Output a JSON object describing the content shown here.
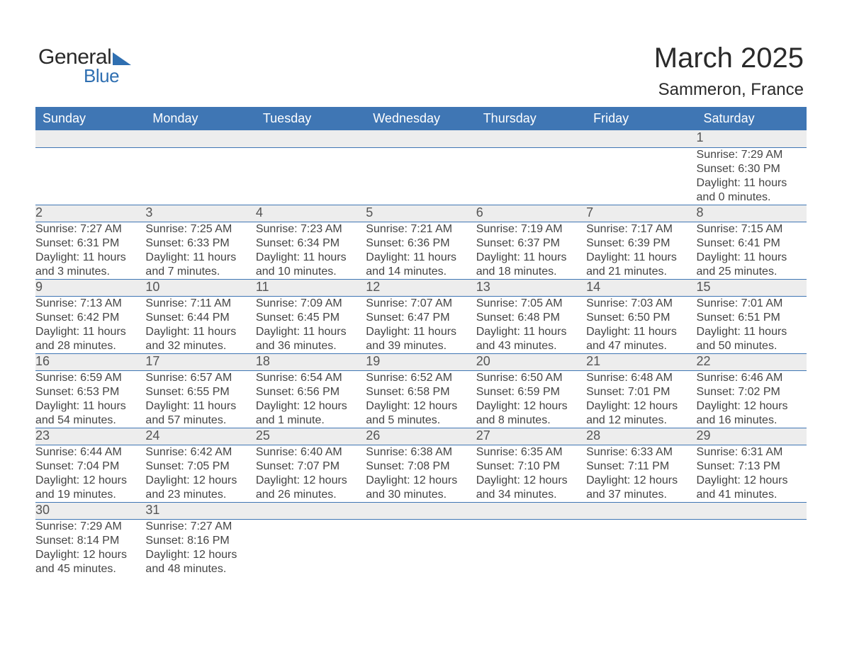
{
  "logo": {
    "word1": "General",
    "word2": "Blue",
    "accent_color": "#2f6fb1"
  },
  "title": {
    "month": "March 2025",
    "location": "Sammeron, France"
  },
  "calendar": {
    "header_bg": "#3f76b4",
    "header_fg": "#ffffff",
    "daynum_bg": "#ededed",
    "rule_color": "#3f76b4",
    "text_color": "#444444",
    "columns": [
      "Sunday",
      "Monday",
      "Tuesday",
      "Wednesday",
      "Thursday",
      "Friday",
      "Saturday"
    ],
    "weeks": [
      [
        null,
        null,
        null,
        null,
        null,
        null,
        {
          "n": "1",
          "sunrise": "7:29 AM",
          "sunset": "6:30 PM",
          "daylight": "11 hours and 0 minutes."
        }
      ],
      [
        {
          "n": "2",
          "sunrise": "7:27 AM",
          "sunset": "6:31 PM",
          "daylight": "11 hours and 3 minutes."
        },
        {
          "n": "3",
          "sunrise": "7:25 AM",
          "sunset": "6:33 PM",
          "daylight": "11 hours and 7 minutes."
        },
        {
          "n": "4",
          "sunrise": "7:23 AM",
          "sunset": "6:34 PM",
          "daylight": "11 hours and 10 minutes."
        },
        {
          "n": "5",
          "sunrise": "7:21 AM",
          "sunset": "6:36 PM",
          "daylight": "11 hours and 14 minutes."
        },
        {
          "n": "6",
          "sunrise": "7:19 AM",
          "sunset": "6:37 PM",
          "daylight": "11 hours and 18 minutes."
        },
        {
          "n": "7",
          "sunrise": "7:17 AM",
          "sunset": "6:39 PM",
          "daylight": "11 hours and 21 minutes."
        },
        {
          "n": "8",
          "sunrise": "7:15 AM",
          "sunset": "6:41 PM",
          "daylight": "11 hours and 25 minutes."
        }
      ],
      [
        {
          "n": "9",
          "sunrise": "7:13 AM",
          "sunset": "6:42 PM",
          "daylight": "11 hours and 28 minutes."
        },
        {
          "n": "10",
          "sunrise": "7:11 AM",
          "sunset": "6:44 PM",
          "daylight": "11 hours and 32 minutes."
        },
        {
          "n": "11",
          "sunrise": "7:09 AM",
          "sunset": "6:45 PM",
          "daylight": "11 hours and 36 minutes."
        },
        {
          "n": "12",
          "sunrise": "7:07 AM",
          "sunset": "6:47 PM",
          "daylight": "11 hours and 39 minutes."
        },
        {
          "n": "13",
          "sunrise": "7:05 AM",
          "sunset": "6:48 PM",
          "daylight": "11 hours and 43 minutes."
        },
        {
          "n": "14",
          "sunrise": "7:03 AM",
          "sunset": "6:50 PM",
          "daylight": "11 hours and 47 minutes."
        },
        {
          "n": "15",
          "sunrise": "7:01 AM",
          "sunset": "6:51 PM",
          "daylight": "11 hours and 50 minutes."
        }
      ],
      [
        {
          "n": "16",
          "sunrise": "6:59 AM",
          "sunset": "6:53 PM",
          "daylight": "11 hours and 54 minutes."
        },
        {
          "n": "17",
          "sunrise": "6:57 AM",
          "sunset": "6:55 PM",
          "daylight": "11 hours and 57 minutes."
        },
        {
          "n": "18",
          "sunrise": "6:54 AM",
          "sunset": "6:56 PM",
          "daylight": "12 hours and 1 minute."
        },
        {
          "n": "19",
          "sunrise": "6:52 AM",
          "sunset": "6:58 PM",
          "daylight": "12 hours and 5 minutes."
        },
        {
          "n": "20",
          "sunrise": "6:50 AM",
          "sunset": "6:59 PM",
          "daylight": "12 hours and 8 minutes."
        },
        {
          "n": "21",
          "sunrise": "6:48 AM",
          "sunset": "7:01 PM",
          "daylight": "12 hours and 12 minutes."
        },
        {
          "n": "22",
          "sunrise": "6:46 AM",
          "sunset": "7:02 PM",
          "daylight": "12 hours and 16 minutes."
        }
      ],
      [
        {
          "n": "23",
          "sunrise": "6:44 AM",
          "sunset": "7:04 PM",
          "daylight": "12 hours and 19 minutes."
        },
        {
          "n": "24",
          "sunrise": "6:42 AM",
          "sunset": "7:05 PM",
          "daylight": "12 hours and 23 minutes."
        },
        {
          "n": "25",
          "sunrise": "6:40 AM",
          "sunset": "7:07 PM",
          "daylight": "12 hours and 26 minutes."
        },
        {
          "n": "26",
          "sunrise": "6:38 AM",
          "sunset": "7:08 PM",
          "daylight": "12 hours and 30 minutes."
        },
        {
          "n": "27",
          "sunrise": "6:35 AM",
          "sunset": "7:10 PM",
          "daylight": "12 hours and 34 minutes."
        },
        {
          "n": "28",
          "sunrise": "6:33 AM",
          "sunset": "7:11 PM",
          "daylight": "12 hours and 37 minutes."
        },
        {
          "n": "29",
          "sunrise": "6:31 AM",
          "sunset": "7:13 PM",
          "daylight": "12 hours and 41 minutes."
        }
      ],
      [
        {
          "n": "30",
          "sunrise": "7:29 AM",
          "sunset": "8:14 PM",
          "daylight": "12 hours and 45 minutes."
        },
        {
          "n": "31",
          "sunrise": "7:27 AM",
          "sunset": "8:16 PM",
          "daylight": "12 hours and 48 minutes."
        },
        null,
        null,
        null,
        null,
        null
      ]
    ],
    "labels": {
      "sunrise": "Sunrise:",
      "sunset": "Sunset:",
      "daylight": "Daylight:"
    }
  }
}
